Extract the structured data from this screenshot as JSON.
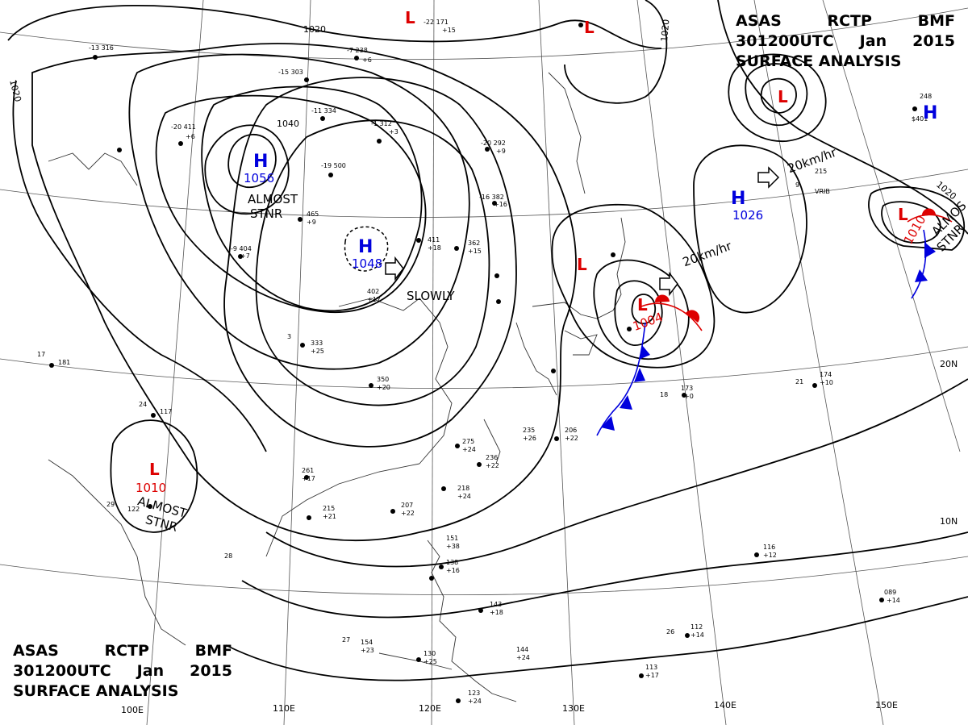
{
  "header_top": {
    "line1": [
      "ASAS",
      "RCTP",
      "BMF"
    ],
    "line2": [
      "301200UTC",
      "Jan",
      "2015"
    ],
    "line3": "SURFACE ANALYSIS"
  },
  "header_bottom": {
    "line1": [
      "ASAS",
      "RCTP",
      "BMF"
    ],
    "line2": [
      "301200UTC",
      "Jan",
      "2015"
    ],
    "line3": "SURFACE ANALYSIS"
  },
  "pressure_centers": [
    {
      "type": "H",
      "pressure": "1056",
      "note": "ALMOST STNR"
    },
    {
      "type": "H",
      "pressure": "1048",
      "note": "SLOWLY"
    },
    {
      "type": "H",
      "pressure": "1026",
      "note": "20km/hr"
    },
    {
      "type": "H",
      "pressure": ""
    },
    {
      "type": "L",
      "pressure": "1010",
      "note": "ALMOST STNR"
    },
    {
      "type": "L",
      "pressure": "1004",
      "note": "20km/hr"
    },
    {
      "type": "L",
      "pressure": "1010",
      "note": "ALMOST STNR"
    },
    {
      "type": "L",
      "pressure": ""
    },
    {
      "type": "L",
      "pressure": ""
    },
    {
      "type": "L",
      "pressure": ""
    },
    {
      "type": "L",
      "pressure": ""
    }
  ],
  "isobar_labels": [
    "1020",
    "1040",
    "1020",
    "1020",
    "1020"
  ],
  "motion_notes": [
    "ALMOST",
    "STNR",
    "SLOWLY",
    "20km/hr",
    "20km/hr",
    "ALMOST",
    "STNR",
    "ALMOS",
    "STNR"
  ],
  "longitudes": [
    "110E",
    "120E",
    "130E",
    "140E",
    "150E",
    "100E"
  ],
  "latitudes": [
    "20N",
    "10N"
  ],
  "station_values": [
    "-22 171",
    "+15",
    "-13 316",
    "-7 238",
    "+6",
    "-15 303",
    "-20 411",
    "+6",
    "-11 334",
    "-1 312",
    "+3",
    "-20 292",
    "+9",
    "-19 500",
    "-16 382",
    "+16",
    "-9 404",
    "+7",
    "465",
    "+9",
    "411",
    "+18",
    "362",
    "+15",
    "402",
    "+17",
    "333",
    "+25",
    "350",
    "+20",
    "275",
    "+24",
    "236",
    "+22",
    "235",
    "+26",
    "206",
    "+22",
    "261",
    "+17",
    "215",
    "+21",
    "207",
    "+22",
    "218",
    "+24",
    "151",
    "+38",
    "138",
    "+16",
    "143",
    "+18",
    "154",
    "+23",
    "130",
    "+25",
    "144",
    "+24",
    "123",
    "+24",
    "113",
    "+17",
    "112",
    "+14",
    "116",
    "+12",
    "173",
    "+0",
    "174",
    "+10",
    "089",
    "+14",
    "248",
    "$401",
    "215",
    "VRIB",
    "117",
    "122",
    "181",
    "24",
    "17",
    "29",
    "28",
    "27",
    "26",
    "21",
    "18",
    "3",
    "9"
  ]
}
